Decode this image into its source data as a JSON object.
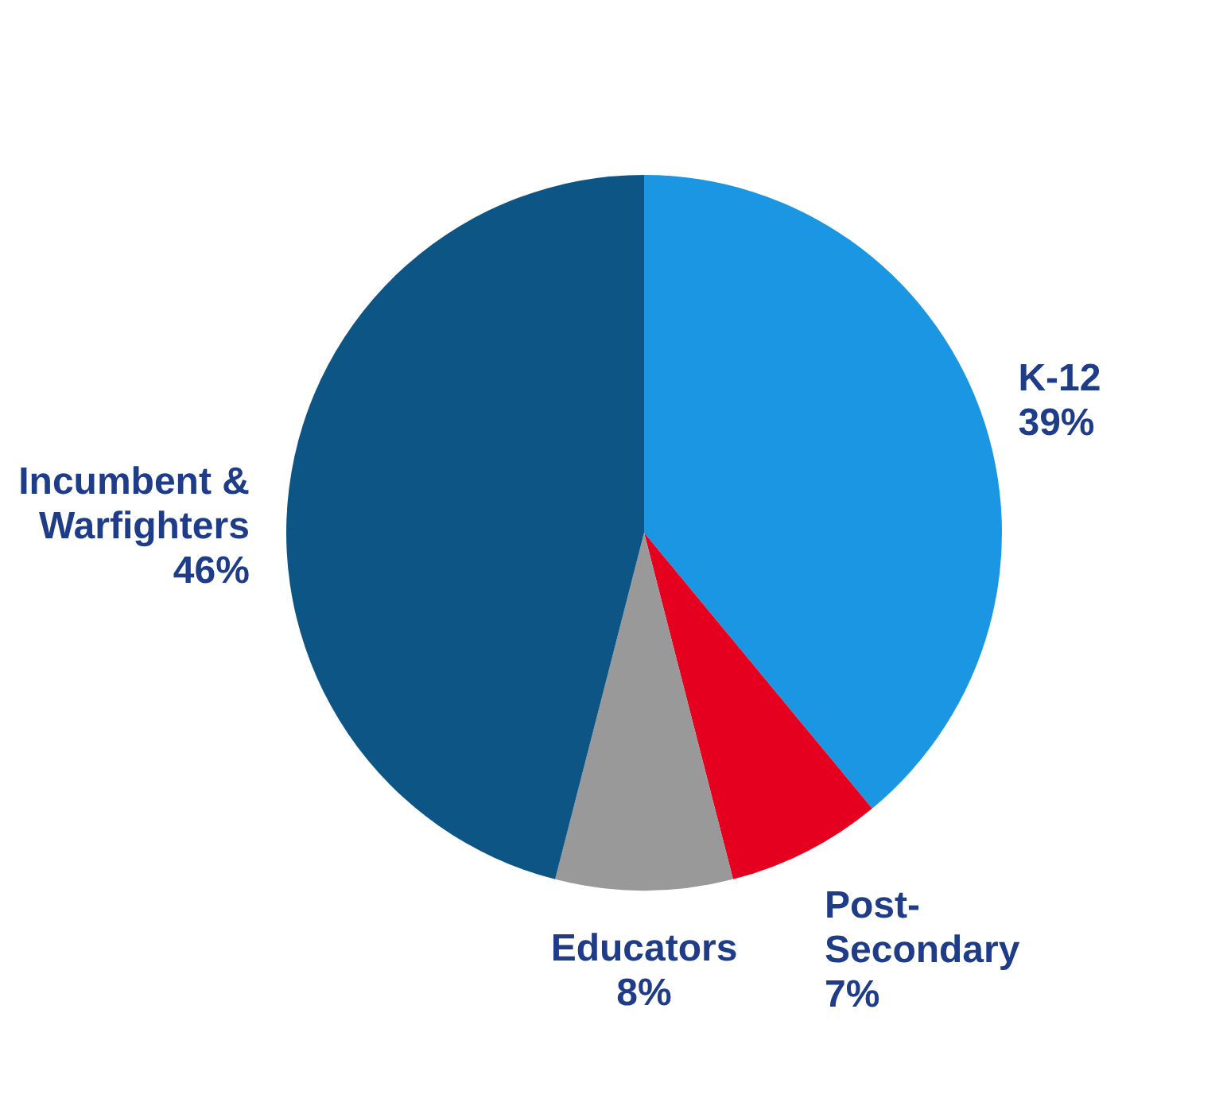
{
  "chart_data": {
    "type": "pie",
    "categories": [
      "K-12",
      "Post-Secondary",
      "Educators",
      "Incumbent & Warfighters"
    ],
    "values": [
      39,
      7,
      8,
      46
    ],
    "value_labels": [
      "39%",
      "7%",
      "8%",
      "46%"
    ],
    "colors": [
      "#1a96e2",
      "#e5001f",
      "#999999",
      "#0c5585"
    ]
  }
}
